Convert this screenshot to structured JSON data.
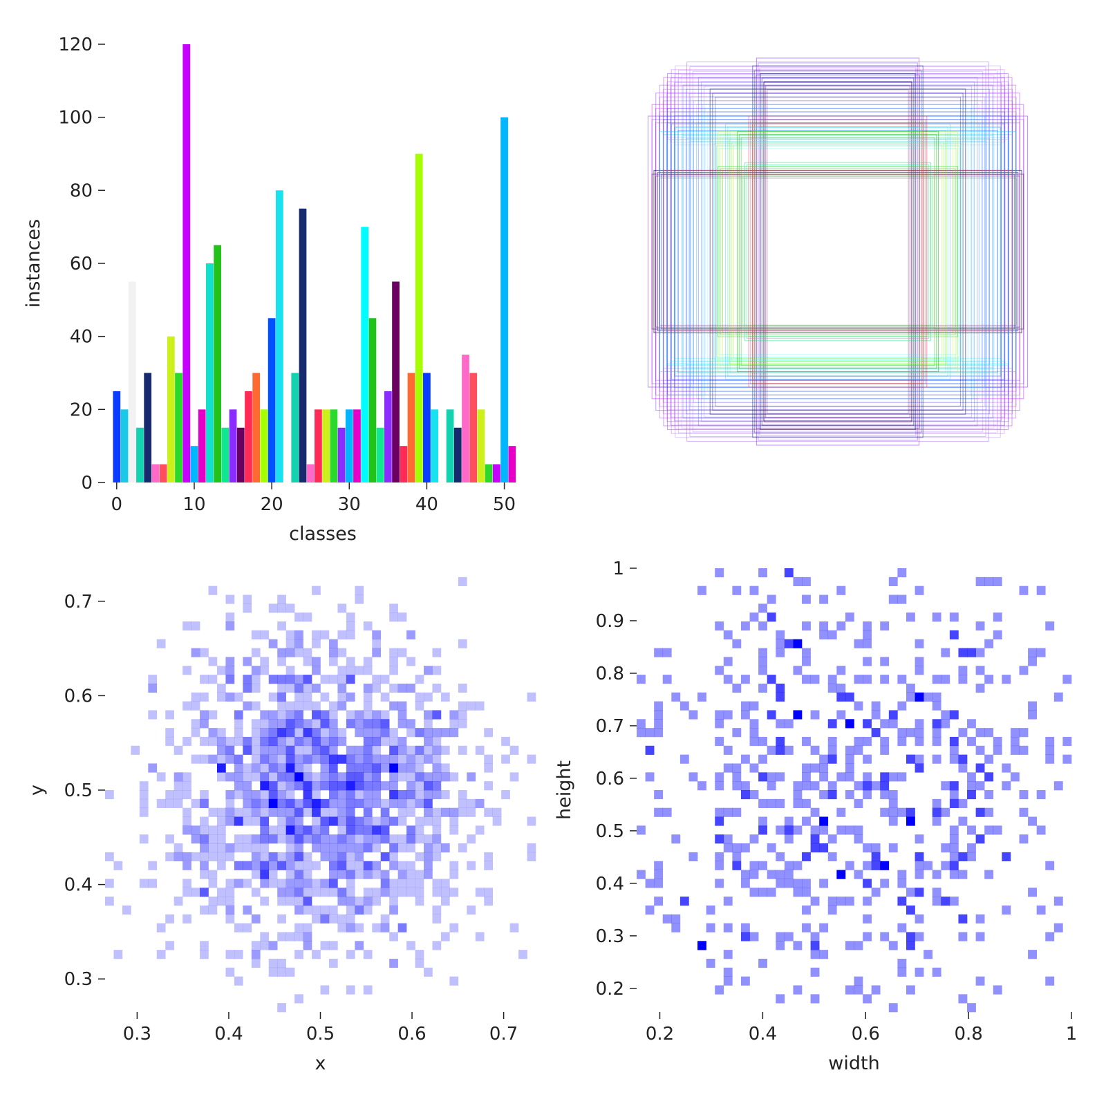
{
  "colors": {
    "palette": [
      "#0a3cff",
      "#18c9e8",
      "#f2f2f2",
      "#13d2b0",
      "#182a6e",
      "#ff69c8",
      "#ff4f5e",
      "#cdf01a",
      "#2bd82b",
      "#c700ff",
      "#00b7ff",
      "#e600c7",
      "#00ffd8",
      "#22c21a",
      "#10e890",
      "#8a2bff",
      "#6a0060",
      "#ff2a55",
      "#ff6a33",
      "#a6ff00",
      "#0050ff",
      "#19e2f0",
      "#00fcff",
      "#ffe100",
      "#b6ff00",
      "#ff7f0e"
    ],
    "heat": "#0000ff",
    "tick": "#222222"
  },
  "chart_data": [
    {
      "type": "bar",
      "id": "class-histogram",
      "xlabel": "classes",
      "ylabel": "instances",
      "xlim": [
        -1.5,
        52
      ],
      "ylim": [
        0,
        120
      ],
      "xticks": [
        0,
        10,
        20,
        30,
        40,
        50
      ],
      "yticks": [
        0,
        20,
        40,
        60,
        80,
        100,
        120
      ],
      "categories": [
        0,
        1,
        2,
        3,
        4,
        5,
        6,
        7,
        8,
        9,
        10,
        11,
        12,
        13,
        14,
        15,
        16,
        17,
        18,
        19,
        20,
        21,
        22,
        23,
        24,
        25,
        26,
        27,
        28,
        29,
        30,
        31,
        32,
        33,
        34,
        35,
        36,
        37,
        38,
        39,
        40,
        41,
        42,
        43,
        44,
        45,
        46,
        47,
        48,
        49,
        50,
        51
      ],
      "values": [
        25,
        20,
        55,
        15,
        30,
        5,
        5,
        40,
        30,
        120,
        10,
        20,
        60,
        65,
        15,
        20,
        15,
        25,
        30,
        20,
        45,
        80,
        0,
        30,
        75,
        5,
        20,
        20,
        20,
        15,
        20,
        20,
        70,
        45,
        15,
        25,
        55,
        10,
        30,
        90,
        30,
        20,
        0,
        20,
        15,
        35,
        30,
        20,
        5,
        5,
        100,
        10
      ],
      "bar_colors": [
        "#0a3cff",
        "#18c9e8",
        "#f2f2f2",
        "#13d2b0",
        "#182a6e",
        "#ff69c8",
        "#ff4f5e",
        "#cdf01a",
        "#2bd82b",
        "#c700ff",
        "#00b7ff",
        "#e600c7",
        "#13e0cc",
        "#22c21a",
        "#10e890",
        "#8a2bff",
        "#6a0060",
        "#ff2a55",
        "#ff6a33",
        "#a6ff00",
        "#0050ff",
        "#19e2f0",
        "#ffffff",
        "#13d2b0",
        "#182a6e",
        "#ff69c8",
        "#ff2a55",
        "#cdf01a",
        "#2bd82b",
        "#8a2bff",
        "#00b7ff",
        "#e600c7",
        "#00fcff",
        "#22c21a",
        "#10e890",
        "#8a2bff",
        "#6a0060",
        "#ff2a55",
        "#ff6a33",
        "#a6ff00",
        "#0a3cff",
        "#19e2f0",
        "#ffffff",
        "#13d2b0",
        "#182a6e",
        "#ff69c8",
        "#ff4f5e",
        "#cdf01a",
        "#2bd82b",
        "#c700ff",
        "#00b7ff",
        "#e600c7"
      ]
    },
    {
      "type": "rectangles",
      "id": "box-overlay",
      "note": "normalized bounding boxes centered on image, [width, height, color, opacity]",
      "boxes": [
        [
          0.98,
          0.7,
          "#8a2bff",
          0.55
        ],
        [
          0.96,
          0.76,
          "#c700ff",
          0.45
        ],
        [
          0.94,
          0.82,
          "#9b30ff",
          0.5
        ],
        [
          0.92,
          0.86,
          "#b040ff",
          0.45
        ],
        [
          0.9,
          0.9,
          "#a020f0",
          0.45
        ],
        [
          0.88,
          0.92,
          "#7a1fff",
          0.45
        ],
        [
          0.86,
          0.94,
          "#c24bff",
          0.4
        ],
        [
          0.84,
          0.96,
          "#a66bff",
          0.4
        ],
        [
          0.78,
          0.98,
          "#9a58ff",
          0.45
        ],
        [
          0.42,
          1.0,
          "#8a2bff",
          0.55
        ],
        [
          0.96,
          0.4,
          "#6a0060",
          0.6
        ],
        [
          0.95,
          0.42,
          "#182a6e",
          0.7
        ],
        [
          0.92,
          0.7,
          "#2a45ff",
          0.5
        ],
        [
          0.88,
          0.74,
          "#3050ff",
          0.45
        ],
        [
          0.86,
          0.66,
          "#1e3cff",
          0.45
        ],
        [
          0.8,
          0.86,
          "#3a5cff",
          0.4
        ],
        [
          0.76,
          0.8,
          "#5c7bff",
          0.35
        ],
        [
          0.72,
          0.9,
          "#4060ff",
          0.4
        ],
        [
          0.66,
          0.84,
          "#182a6e",
          0.6
        ],
        [
          0.4,
          0.92,
          "#182a6e",
          0.6
        ],
        [
          0.38,
          0.88,
          "#6a0060",
          0.5
        ],
        [
          0.44,
          0.96,
          "#182a6e",
          0.55
        ],
        [
          0.92,
          0.62,
          "#00cfff",
          0.45
        ],
        [
          0.88,
          0.58,
          "#19e2f0",
          0.45
        ],
        [
          0.84,
          0.64,
          "#00fcff",
          0.4
        ],
        [
          0.8,
          0.6,
          "#18c9e8",
          0.45
        ],
        [
          0.76,
          0.7,
          "#00b7ff",
          0.4
        ],
        [
          0.7,
          0.76,
          "#19e2f0",
          0.4
        ],
        [
          0.64,
          0.56,
          "#00fcff",
          0.45
        ],
        [
          0.58,
          0.66,
          "#18c9e8",
          0.4
        ],
        [
          0.62,
          0.62,
          "#cdf01a",
          0.55
        ],
        [
          0.56,
          0.58,
          "#a6ff00",
          0.55
        ],
        [
          0.62,
          0.44,
          "#2bd82b",
          0.55
        ],
        [
          0.52,
          0.62,
          "#22c21a",
          0.6
        ],
        [
          0.48,
          0.46,
          "#10e890",
          0.55
        ],
        [
          0.5,
          0.4,
          "#2bd82b",
          0.5
        ],
        [
          0.46,
          0.7,
          "#ff2a55",
          0.5
        ],
        [
          0.44,
          0.68,
          "#ff6a33",
          0.45
        ],
        [
          0.9,
          0.42,
          "#ff2a55",
          0.45
        ],
        [
          0.36,
          0.36,
          "#ffffff",
          0.0
        ]
      ]
    },
    {
      "type": "heatmap",
      "id": "xy-heatmap",
      "xlabel": "x",
      "ylabel": "y",
      "xlim": [
        0.265,
        0.735
      ],
      "ylim": [
        0.265,
        0.735
      ],
      "xticks": [
        0.3,
        0.4,
        0.5,
        0.6,
        0.7
      ],
      "yticks": [
        0.3,
        0.4,
        0.5,
        0.6,
        0.7
      ],
      "center": [
        0.5,
        0.5
      ],
      "spread": 0.085,
      "bins": 50
    },
    {
      "type": "heatmap",
      "id": "wh-heatmap",
      "xlabel": "width",
      "ylabel": "height",
      "xlim": [
        0.155,
        1.0
      ],
      "ylim": [
        0.155,
        1.0
      ],
      "xticks": [
        0.2,
        0.4,
        0.6,
        0.8,
        1.0
      ],
      "yticks": [
        0.2,
        0.3,
        0.4,
        0.5,
        0.6,
        0.7,
        0.8,
        0.9,
        1.0
      ],
      "center": [
        0.58,
        0.58
      ],
      "spread": 0.24,
      "bins": 50
    }
  ]
}
